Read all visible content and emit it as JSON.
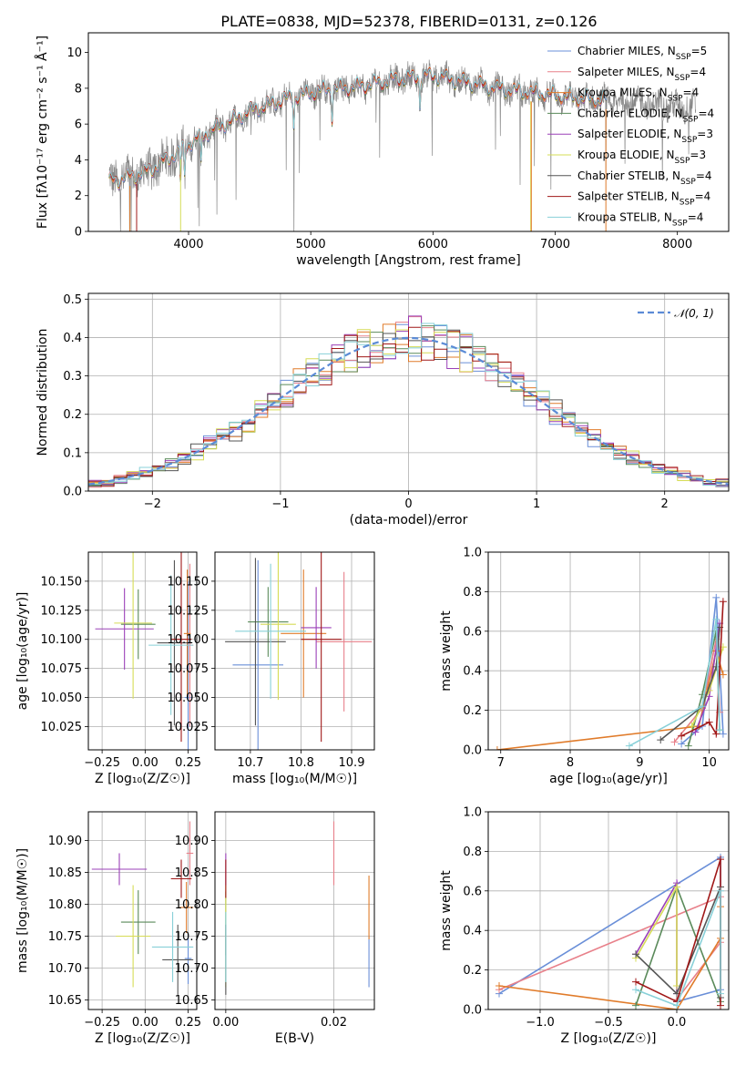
{
  "figure_title": "PLATE=0838, MJD=52378, FIBERID=0131, z=0.126",
  "colors": {
    "Chabrier MILES": "#6a8fd8",
    "Salpeter MILES": "#e8808a",
    "Kroupa MILES": "#e07b2a",
    "Chabrier ELODIE": "#5a8a5a",
    "Salpeter ELODIE": "#9b40b8",
    "Kroupa ELODIE": "#d6dc56",
    "Chabrier STELIB": "#555555",
    "Salpeter STELIB": "#a01818",
    "Kroupa STELIB": "#88d0d8",
    "data": "#888888",
    "normal": "#5b8bd6"
  },
  "chart_data": [
    {
      "id": "spectrum",
      "type": "line",
      "title": "PLATE=0838, MJD=52378, FIBERID=0131, z=0.126",
      "xlabel": "wavelength [Angstrom, rest frame]",
      "ylabel": "Flux [fλ10⁻¹⁷ erg cm⁻² s⁻¹ Å⁻¹]",
      "xlim": [
        3180,
        8420
      ],
      "ylim": [
        0,
        11.1
      ],
      "xticks": [
        4000,
        5000,
        6000,
        7000,
        8000
      ],
      "yticks": [
        0,
        2,
        4,
        6,
        8,
        10
      ],
      "legend_position": "right",
      "legend": [
        {
          "label": "Chabrier MILES, N",
          "sub": "SSP",
          "suffix": "=5"
        },
        {
          "label": "Salpeter MILES, N",
          "sub": "SSP",
          "suffix": "=4"
        },
        {
          "label": "Kroupa MILES, N",
          "sub": "SSP",
          "suffix": "=4"
        },
        {
          "label": "Chabrier ELODIE, N",
          "sub": "SSP",
          "suffix": "=4"
        },
        {
          "label": "Salpeter ELODIE, N",
          "sub": "SSP",
          "suffix": "=3"
        },
        {
          "label": "Kroupa ELODIE, N",
          "sub": "SSP",
          "suffix": "=3"
        },
        {
          "label": "Chabrier STELIB, N",
          "sub": "SSP",
          "suffix": "=4"
        },
        {
          "label": "Salpeter STELIB, N",
          "sub": "SSP",
          "suffix": "=4"
        },
        {
          "label": "Kroupa STELIB, N",
          "sub": "SSP",
          "suffix": "=4"
        }
      ],
      "continuum": [
        [
          3350,
          2.8
        ],
        [
          3500,
          3.0
        ],
        [
          3650,
          3.3
        ],
        [
          3800,
          3.9
        ],
        [
          3950,
          4.6
        ],
        [
          4100,
          5.3
        ],
        [
          4300,
          6.0
        ],
        [
          4500,
          6.7
        ],
        [
          4800,
          7.4
        ],
        [
          5100,
          7.9
        ],
        [
          5400,
          8.1
        ],
        [
          5700,
          8.5
        ],
        [
          6000,
          8.7
        ],
        [
          6300,
          8.3
        ],
        [
          6600,
          7.9
        ],
        [
          6900,
          7.7
        ],
        [
          7200,
          7.4
        ],
        [
          7500,
          7.3
        ],
        [
          7800,
          7.1
        ],
        [
          8150,
          6.9
        ]
      ],
      "data_x_range": [
        3350,
        8150
      ],
      "models_x_range": [
        3350,
        7420
      ],
      "absorption_lines": [
        3933,
        3968,
        4102,
        4861,
        5175,
        5893
      ]
    },
    {
      "id": "residuals",
      "type": "step",
      "xlabel": "(data-model)/error",
      "ylabel": "Normed distribution",
      "xlim": [
        -2.5,
        2.5
      ],
      "ylim": [
        0,
        0.515
      ],
      "xticks": [
        -2,
        -1,
        0,
        1,
        2
      ],
      "yticks": [
        0.0,
        0.1,
        0.2,
        0.3,
        0.4,
        0.5
      ],
      "grid": true,
      "legend_position": "top-right",
      "reference": {
        "label": "𝒩(0, 1)",
        "mean": 0,
        "sigma": 1
      }
    },
    {
      "id": "age-vs-Z",
      "type": "errorbar",
      "xlabel": "Z [log₁₀(Z/Z☉)]",
      "ylabel": "age  [log₁₀(age/yr)]",
      "xlim": [
        -0.33,
        0.3
      ],
      "ylim": [
        10.005,
        10.175
      ],
      "xticks": [
        -0.25,
        0.0,
        0.25
      ],
      "yticks": [
        10.025,
        10.05,
        10.075,
        10.1,
        10.125,
        10.15
      ],
      "grid": true,
      "points": [
        {
          "series": "Chabrier MILES",
          "x": 0.25,
          "xerr": 0.02,
          "y": 10.05,
          "yerr": 0.1
        },
        {
          "series": "Salpeter MILES",
          "x": 0.26,
          "xerr": 0.02,
          "y": 10.095,
          "yerr": 0.07
        },
        {
          "series": "Kroupa MILES",
          "x": 0.245,
          "xerr": 0.02,
          "y": 10.105,
          "yerr": 0.055
        },
        {
          "series": "Chabrier ELODIE",
          "x": -0.04,
          "xerr": 0.1,
          "y": 10.113,
          "yerr": 0.03
        },
        {
          "series": "Salpeter ELODIE",
          "x": -0.12,
          "xerr": 0.17,
          "y": 10.109,
          "yerr": 0.035
        },
        {
          "series": "Kroupa ELODIE",
          "x": -0.07,
          "xerr": 0.11,
          "y": 10.114,
          "yerr": 0.065
        },
        {
          "series": "Chabrier STELIB",
          "x": 0.17,
          "xerr": 0.1,
          "y": 10.097,
          "yerr": 0.071
        },
        {
          "series": "Salpeter STELIB",
          "x": 0.21,
          "xerr": 0.06,
          "y": 10.1,
          "yerr": 0.088
        },
        {
          "series": "Kroupa STELIB",
          "x": 0.15,
          "xerr": 0.13,
          "y": 10.095,
          "yerr": 0.06
        }
      ]
    },
    {
      "id": "age-vs-mass",
      "type": "errorbar",
      "xlabel": "mass [log₁₀(M/M☉)]",
      "ylabel": "",
      "xlim": [
        10.63,
        10.945
      ],
      "ylim": [
        10.005,
        10.175
      ],
      "xticks": [
        10.7,
        10.8,
        10.9
      ],
      "yticks": [
        10.025,
        10.05,
        10.075,
        10.1,
        10.125,
        10.15
      ],
      "grid": true,
      "points": [
        {
          "series": "Chabrier MILES",
          "x": 10.715,
          "xerr": 0.05,
          "y": 10.078,
          "yerr": 0.09
        },
        {
          "series": "Salpeter MILES",
          "x": 10.885,
          "xerr": 0.055,
          "y": 10.098,
          "yerr": 0.06
        },
        {
          "series": "Kroupa MILES",
          "x": 10.805,
          "xerr": 0.045,
          "y": 10.105,
          "yerr": 0.055
        },
        {
          "series": "Chabrier ELODIE",
          "x": 10.735,
          "xerr": 0.04,
          "y": 10.115,
          "yerr": 0.03
        },
        {
          "series": "Salpeter ELODIE",
          "x": 10.83,
          "xerr": 0.03,
          "y": 10.11,
          "yerr": 0.035
        },
        {
          "series": "Kroupa ELODIE",
          "x": 10.755,
          "xerr": 0.035,
          "y": 10.113,
          "yerr": 0.065
        },
        {
          "series": "Chabrier STELIB",
          "x": 10.71,
          "xerr": 0.06,
          "y": 10.098,
          "yerr": 0.072
        },
        {
          "series": "Salpeter STELIB",
          "x": 10.84,
          "xerr": 0.04,
          "y": 10.1,
          "yerr": 0.088
        },
        {
          "series": "Kroupa STELIB",
          "x": 10.74,
          "xerr": 0.07,
          "y": 10.107,
          "yerr": 0.058
        }
      ]
    },
    {
      "id": "weight-vs-age",
      "type": "line",
      "xlabel": "age  [log₁₀(age/yr)]",
      "ylabel": "mass weight",
      "xlim": [
        6.82,
        10.28
      ],
      "ylim": [
        0,
        1
      ],
      "xticks": [
        7,
        8,
        9,
        10
      ],
      "yticks": [
        0.0,
        0.2,
        0.4,
        0.6,
        0.8,
        1.0
      ],
      "grid": true,
      "series": [
        {
          "name": "Chabrier MILES",
          "points": [
            [
              9.6,
              0.03
            ],
            [
              9.9,
              0.12
            ],
            [
              10.1,
              0.77
            ],
            [
              10.2,
              0.08
            ]
          ]
        },
        {
          "name": "Salpeter MILES",
          "points": [
            [
              9.5,
              0.04
            ],
            [
              9.9,
              0.21
            ],
            [
              10.1,
              0.56
            ],
            [
              10.15,
              0.19
            ]
          ]
        },
        {
          "name": "Kroupa MILES",
          "points": [
            [
              6.95,
              0.0
            ],
            [
              9.85,
              0.12
            ],
            [
              10.1,
              0.5
            ],
            [
              10.2,
              0.38
            ]
          ]
        },
        {
          "name": "Chabrier ELODIE",
          "points": [
            [
              9.7,
              0.02
            ],
            [
              9.9,
              0.28
            ],
            [
              10.1,
              0.6
            ],
            [
              10.15,
              0.1
            ]
          ]
        },
        {
          "name": "Salpeter ELODIE",
          "points": [
            [
              9.8,
              0.09
            ],
            [
              10.0,
              0.27
            ],
            [
              10.15,
              0.64
            ]
          ]
        },
        {
          "name": "Kroupa ELODIE",
          "points": [
            [
              9.75,
              0.12
            ],
            [
              10.0,
              0.3
            ],
            [
              10.2,
              0.52
            ]
          ]
        },
        {
          "name": "Chabrier STELIB",
          "points": [
            [
              9.3,
              0.05
            ],
            [
              9.9,
              0.22
            ],
            [
              10.1,
              0.42
            ],
            [
              10.15,
              0.62
            ]
          ]
        },
        {
          "name": "Salpeter STELIB",
          "points": [
            [
              9.6,
              0.07
            ],
            [
              10.0,
              0.14
            ],
            [
              10.1,
              0.08
            ],
            [
              10.2,
              0.75
            ]
          ]
        },
        {
          "name": "Kroupa STELIB",
          "points": [
            [
              8.85,
              0.02
            ],
            [
              9.9,
              0.22
            ],
            [
              10.1,
              0.66
            ],
            [
              10.15,
              0.1
            ]
          ]
        }
      ]
    },
    {
      "id": "mass-vs-Z",
      "type": "errorbar",
      "xlabel": "Z [log₁₀(Z/Z☉)]",
      "ylabel": "mass [log₁₀(M/M☉)]",
      "xlim": [
        -0.33,
        0.3
      ],
      "ylim": [
        10.635,
        10.945
      ],
      "xticks": [
        -0.25,
        0.0,
        0.25
      ],
      "yticks": [
        10.65,
        10.7,
        10.75,
        10.8,
        10.85,
        10.9
      ],
      "grid": true,
      "points": [
        {
          "series": "Chabrier MILES",
          "x": 0.25,
          "xerr": 0.02,
          "y": 10.715,
          "yerr": 0.04
        },
        {
          "series": "Salpeter MILES",
          "x": 0.26,
          "xerr": 0.02,
          "y": 10.88,
          "yerr": 0.05
        },
        {
          "series": "Kroupa MILES",
          "x": 0.24,
          "xerr": 0.04,
          "y": 10.795,
          "yerr": 0.04
        },
        {
          "series": "Chabrier ELODIE",
          "x": -0.04,
          "xerr": 0.1,
          "y": 10.772,
          "yerr": 0.05
        },
        {
          "series": "Salpeter ELODIE",
          "x": -0.15,
          "xerr": 0.16,
          "y": 10.855,
          "yerr": 0.025
        },
        {
          "series": "Kroupa ELODIE",
          "x": -0.07,
          "xerr": 0.1,
          "y": 10.75,
          "yerr": 0.08
        },
        {
          "series": "Chabrier STELIB",
          "x": 0.19,
          "xerr": 0.09,
          "y": 10.713,
          "yerr": 0.055
        },
        {
          "series": "Salpeter STELIB",
          "x": 0.21,
          "xerr": 0.06,
          "y": 10.84,
          "yerr": 0.03
        },
        {
          "series": "Kroupa STELIB",
          "x": 0.16,
          "xerr": 0.12,
          "y": 10.733,
          "yerr": 0.055
        }
      ]
    },
    {
      "id": "mass-vs-EBV",
      "type": "errorbar",
      "xlabel": "E(B-V)",
      "ylabel": "",
      "xlim": [
        -0.002,
        0.0275
      ],
      "ylim": [
        10.635,
        10.945
      ],
      "xticks": [
        0.0,
        0.02
      ],
      "yticks": [
        10.65,
        10.7,
        10.75,
        10.8,
        10.85,
        10.9
      ],
      "grid": true,
      "points": [
        {
          "series": "Chabrier MILES",
          "x": 0.0265,
          "xerr": 0,
          "y": 10.71,
          "yerr": 0.04
        },
        {
          "series": "Salpeter MILES",
          "x": 0.02,
          "xerr": 0,
          "y": 10.88,
          "yerr": 0.05
        },
        {
          "series": "Kroupa MILES",
          "x": 0.0265,
          "xerr": 0,
          "y": 10.795,
          "yerr": 0.05
        },
        {
          "series": "Chabrier ELODIE",
          "x": 0.0,
          "xerr": 0,
          "y": 10.77,
          "yerr": 0.05
        },
        {
          "series": "Salpeter ELODIE",
          "x": 0.0,
          "xerr": 0,
          "y": 10.855,
          "yerr": 0.025
        },
        {
          "series": "Kroupa ELODIE",
          "x": 0.0,
          "xerr": 0,
          "y": 10.75,
          "yerr": 0.08
        },
        {
          "series": "Chabrier STELIB",
          "x": 0.0,
          "xerr": 0,
          "y": 10.713,
          "yerr": 0.055
        },
        {
          "series": "Salpeter STELIB",
          "x": 0.0,
          "xerr": 0,
          "y": 10.84,
          "yerr": 0.03
        },
        {
          "series": "Kroupa STELIB",
          "x": 0.0,
          "xerr": 0,
          "y": 10.733,
          "yerr": 0.055
        }
      ]
    },
    {
      "id": "weight-vs-Z",
      "type": "line",
      "xlabel": "Z [log₁₀(Z/Z☉)]",
      "ylabel": "mass weight",
      "xlim": [
        -1.38,
        0.38
      ],
      "ylim": [
        0,
        1
      ],
      "xticks": [
        -1.0,
        -0.5,
        0.0
      ],
      "yticks": [
        0.0,
        0.2,
        0.4,
        0.6,
        0.8,
        1.0
      ],
      "grid": true,
      "series": [
        {
          "name": "Chabrier MILES",
          "points": [
            [
              -1.3,
              0.08
            ],
            [
              0.32,
              0.77
            ],
            [
              0.32,
              0.1
            ],
            [
              0.0,
              0.04
            ]
          ]
        },
        {
          "name": "Salpeter MILES",
          "points": [
            [
              -1.3,
              0.1
            ],
            [
              0.32,
              0.57
            ],
            [
              0.32,
              0.34
            ],
            [
              0.0,
              0.05
            ]
          ]
        },
        {
          "name": "Kroupa MILES",
          "points": [
            [
              -1.3,
              0.12
            ],
            [
              0.0,
              0.0
            ],
            [
              0.32,
              0.36
            ],
            [
              0.32,
              0.52
            ]
          ]
        },
        {
          "name": "Chabrier ELODIE",
          "points": [
            [
              -0.3,
              0.02
            ],
            [
              0.0,
              0.62
            ],
            [
              0.32,
              0.04
            ]
          ]
        },
        {
          "name": "Salpeter ELODIE",
          "points": [
            [
              -0.3,
              0.28
            ],
            [
              0.0,
              0.64
            ],
            [
              0.0,
              0.08
            ]
          ]
        },
        {
          "name": "Kroupa ELODIE",
          "points": [
            [
              -0.3,
              0.26
            ],
            [
              0.0,
              0.62
            ],
            [
              0.0,
              0.12
            ]
          ]
        },
        {
          "name": "Chabrier STELIB",
          "points": [
            [
              -0.3,
              0.28
            ],
            [
              0.0,
              0.08
            ],
            [
              0.32,
              0.62
            ],
            [
              0.32,
              0.06
            ]
          ]
        },
        {
          "name": "Salpeter STELIB",
          "points": [
            [
              -0.3,
              0.14
            ],
            [
              0.0,
              0.04
            ],
            [
              0.32,
              0.76
            ],
            [
              0.32,
              0.02
            ]
          ]
        },
        {
          "name": "Kroupa STELIB",
          "points": [
            [
              -0.3,
              0.1
            ],
            [
              0.0,
              0.02
            ],
            [
              0.32,
              0.6
            ],
            [
              0.32,
              0.08
            ]
          ]
        }
      ]
    }
  ]
}
